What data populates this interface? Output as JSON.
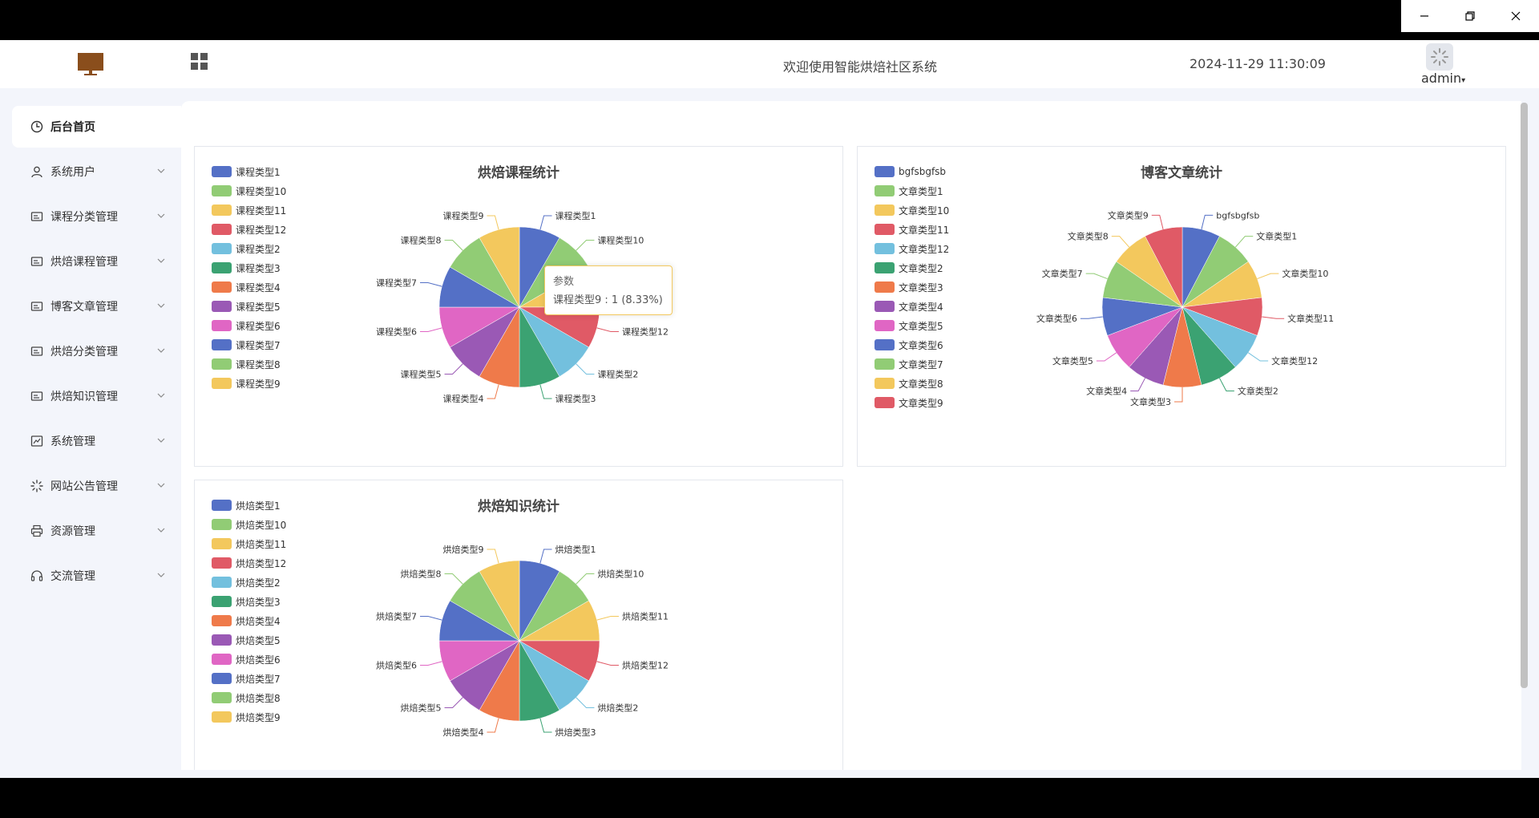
{
  "window": {
    "controls": [
      "minimize",
      "restore",
      "close"
    ]
  },
  "header": {
    "welcome": "欢迎使用智能烘焙社区系统",
    "datetime": "2024-11-29 11:30:09",
    "user": "admin"
  },
  "sidebar": {
    "items": [
      {
        "label": "后台首页",
        "icon": "home-clock-icon",
        "active": true
      },
      {
        "label": "系统用户",
        "icon": "user-icon"
      },
      {
        "label": "课程分类管理",
        "icon": "card-icon"
      },
      {
        "label": "烘焙课程管理",
        "icon": "card-icon"
      },
      {
        "label": "博客文章管理",
        "icon": "card-icon"
      },
      {
        "label": "烘焙分类管理",
        "icon": "card-icon"
      },
      {
        "label": "烘焙知识管理",
        "icon": "card-icon"
      },
      {
        "label": "系统管理",
        "icon": "chart-icon"
      },
      {
        "label": "网站公告管理",
        "icon": "loading-icon"
      },
      {
        "label": "资源管理",
        "icon": "printer-icon"
      },
      {
        "label": "交流管理",
        "icon": "headset-icon"
      }
    ]
  },
  "colors": [
    "#5470c6",
    "#91cc75",
    "#f3c85d",
    "#e05a66",
    "#73c0de",
    "#3ba272",
    "#ef7a4a",
    "#9a59b5",
    "#e066c4",
    "#5470c6",
    "#91cc75",
    "#f3c85d",
    "#e05a66"
  ],
  "tooltip": {
    "title": "参数",
    "text": "课程类型9 : 1 (8.33%)"
  },
  "chart_data": [
    {
      "type": "pie",
      "title": "烘焙课程统计",
      "legend": [
        "课程类型1",
        "课程类型10",
        "课程类型11",
        "课程类型12",
        "课程类型2",
        "课程类型3",
        "课程类型4",
        "课程类型5",
        "课程类型6",
        "课程类型7",
        "课程类型8",
        "课程类型9"
      ],
      "categories": [
        "课程类型1",
        "课程类型10",
        "课程类型11",
        "课程类型12",
        "课程类型2",
        "课程类型3",
        "课程类型4",
        "课程类型5",
        "课程类型6",
        "课程类型7",
        "课程类型8",
        "课程类型9"
      ],
      "values": [
        1,
        1,
        1,
        1,
        1,
        1,
        1,
        1,
        1,
        1,
        1,
        1
      ],
      "legend_position": "top-left"
    },
    {
      "type": "pie",
      "title": "博客文章统计",
      "legend": [
        "bgfsbgfsb",
        "文章类型1",
        "文章类型10",
        "文章类型11",
        "文章类型12",
        "文章类型2",
        "文章类型3",
        "文章类型4",
        "文章类型5",
        "文章类型6",
        "文章类型7",
        "文章类型8",
        "文章类型9"
      ],
      "categories": [
        "bgfsbgfsb",
        "文章类型1",
        "文章类型10",
        "文章类型11",
        "文章类型12",
        "文章类型2",
        "文章类型3",
        "文章类型4",
        "文章类型5",
        "文章类型6",
        "文章类型7",
        "文章类型8",
        "文章类型9"
      ],
      "values": [
        1,
        1,
        1,
        1,
        1,
        1,
        1,
        1,
        1,
        1,
        1,
        1,
        1
      ],
      "legend_position": "top-left"
    },
    {
      "type": "pie",
      "title": "烘焙知识统计",
      "legend": [
        "烘焙类型1",
        "烘焙类型10",
        "烘焙类型11",
        "烘焙类型12",
        "烘焙类型2",
        "烘焙类型3",
        "烘焙类型4",
        "烘焙类型5",
        "烘焙类型6",
        "烘焙类型7",
        "烘焙类型8",
        "烘焙类型9"
      ],
      "categories": [
        "烘焙类型1",
        "烘焙类型10",
        "烘焙类型11",
        "烘焙类型12",
        "烘焙类型2",
        "烘焙类型3",
        "烘焙类型4",
        "烘焙类型5",
        "烘焙类型6",
        "烘焙类型7",
        "烘焙类型8",
        "烘焙类型9"
      ],
      "values": [
        1,
        1,
        1,
        1,
        1,
        1,
        1,
        1,
        1,
        1,
        1,
        1
      ],
      "legend_position": "top-left"
    }
  ]
}
